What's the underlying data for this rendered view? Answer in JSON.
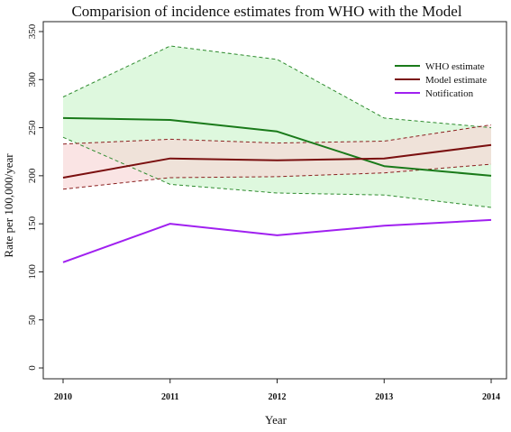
{
  "chart_data": {
    "type": "line",
    "title": "Comparision of incidence estimates from WHO with the Model",
    "xlabel": "Year",
    "ylabel": "Rate per 100,000/year",
    "x": [
      2010,
      2011,
      2012,
      2013,
      2014
    ],
    "x_tick_labels": [
      "2010",
      "2011",
      "2012",
      "2013",
      "2014"
    ],
    "ylim": [
      0,
      350
    ],
    "y_ticks": [
      0,
      50,
      100,
      150,
      200,
      250,
      300,
      350
    ],
    "y_tick_labels": [
      "0",
      "50",
      "100",
      "150",
      "200",
      "250",
      "300",
      "350"
    ],
    "legend_position": "top-right",
    "grid": false,
    "series": [
      {
        "name": "WHO estimate",
        "color": "#1a7a1a",
        "values": [
          260,
          258,
          246,
          210,
          200
        ],
        "upper": [
          282,
          335,
          321,
          260,
          250
        ],
        "lower": [
          240,
          191,
          182,
          180,
          167
        ],
        "band_fill": "#ccf5cc",
        "band_line_color": "#2e8b2e"
      },
      {
        "name": "Model estimate",
        "color": "#7a0f0f",
        "values": [
          198,
          218,
          216,
          218,
          232
        ],
        "upper": [
          233,
          238,
          234,
          236,
          253
        ],
        "lower": [
          186,
          198,
          199,
          203,
          212
        ],
        "band_fill": "#f7d6d6",
        "band_line_color": "#8b2020"
      },
      {
        "name": "Notification",
        "color": "#a020f0",
        "values": [
          110,
          150,
          138,
          148,
          154
        ]
      }
    ]
  }
}
